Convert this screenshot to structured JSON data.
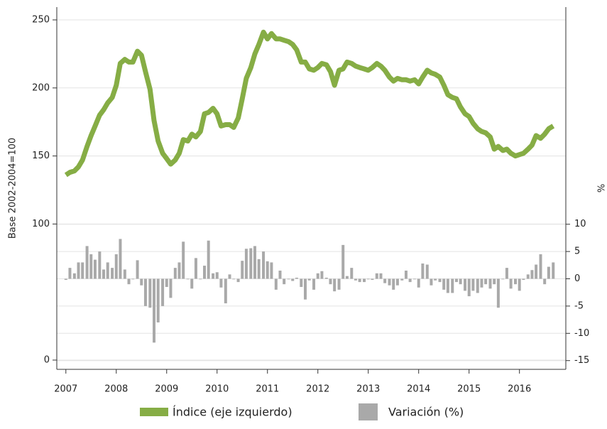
{
  "chart_data": {
    "type": "line",
    "y_label": "Base 2002-2004=100",
    "y2_label": "%",
    "x": [
      2007.0,
      2007.08,
      2007.17,
      2007.25,
      2007.33,
      2007.42,
      2007.5,
      2007.58,
      2007.67,
      2007.75,
      2007.83,
      2007.92,
      2008.0,
      2008.08,
      2008.17,
      2008.25,
      2008.33,
      2008.42,
      2008.5,
      2008.58,
      2008.67,
      2008.75,
      2008.83,
      2008.92,
      2009.0,
      2009.08,
      2009.17,
      2009.25,
      2009.33,
      2009.42,
      2009.5,
      2009.58,
      2009.67,
      2009.75,
      2009.83,
      2009.92,
      2010.0,
      2010.08,
      2010.17,
      2010.25,
      2010.33,
      2010.42,
      2010.5,
      2010.58,
      2010.67,
      2010.75,
      2010.83,
      2010.92,
      2011.0,
      2011.08,
      2011.17,
      2011.25,
      2011.33,
      2011.42,
      2011.5,
      2011.58,
      2011.67,
      2011.75,
      2011.83,
      2011.92,
      2012.0,
      2012.08,
      2012.17,
      2012.25,
      2012.33,
      2012.42,
      2012.5,
      2012.58,
      2012.67,
      2012.75,
      2012.83,
      2012.92,
      2013.0,
      2013.08,
      2013.17,
      2013.25,
      2013.33,
      2013.42,
      2013.5,
      2013.58,
      2013.67,
      2013.75,
      2013.83,
      2013.92,
      2014.0,
      2014.08,
      2014.17,
      2014.25,
      2014.33,
      2014.42,
      2014.5,
      2014.58,
      2014.67,
      2014.75,
      2014.83,
      2014.92,
      2015.0,
      2015.08,
      2015.17,
      2015.25,
      2015.33,
      2015.42,
      2015.5,
      2015.58,
      2015.67,
      2015.75,
      2015.83,
      2015.92,
      2016.0,
      2016.08,
      2016.17,
      2016.25,
      2016.33,
      2016.42,
      2016.5,
      2016.58,
      2016.67
    ],
    "series": [
      {
        "name": "Índice (eje izquierdo)",
        "type": "line",
        "axis": "y",
        "color": "#86ad45",
        "values": [
          136,
          138,
          139,
          142,
          147,
          157,
          165,
          172,
          180,
          184,
          189,
          193,
          202,
          218,
          221,
          219,
          219,
          227,
          224,
          212,
          199,
          176,
          161,
          152,
          148,
          144,
          147,
          152,
          162,
          161,
          166,
          164,
          168,
          181,
          182,
          185,
          181,
          172,
          173,
          173,
          171,
          178,
          192,
          207,
          215,
          225,
          232,
          241,
          236,
          240,
          236,
          236,
          235,
          234,
          232,
          228,
          219,
          219,
          214,
          213,
          215,
          218,
          217,
          212,
          202,
          213,
          214,
          219,
          218,
          216,
          215,
          214,
          213,
          215,
          218,
          216,
          213,
          208,
          205,
          207,
          206,
          206,
          205,
          206,
          203,
          208,
          213,
          211,
          210,
          208,
          202,
          195,
          193,
          192,
          186,
          181,
          179,
          174,
          170,
          168,
          167,
          164,
          155,
          157,
          154,
          155,
          152,
          150,
          151,
          152,
          155,
          158,
          165,
          163,
          166,
          170,
          172
        ]
      },
      {
        "name": "Variación (%)",
        "type": "bar",
        "axis": "y2",
        "color": "#a9a9a9",
        "values": [
          -0.2,
          2,
          1,
          3,
          3,
          6,
          4.5,
          3.5,
          5,
          1.7,
          3,
          2,
          4.5,
          7.3,
          1.7,
          -1,
          0,
          3.4,
          -1.2,
          -5,
          -5.3,
          -11.7,
          -8,
          -5,
          -1.5,
          -3.5,
          2,
          3,
          6.8,
          0,
          -1.8,
          3.8,
          0,
          2.4,
          7,
          1,
          1.2,
          -1.6,
          -4.5,
          0.8,
          0,
          -0.6,
          3.3,
          5.5,
          5.6,
          6,
          3.6,
          5,
          3.2,
          3,
          -2,
          1.5,
          -1,
          0,
          -0.4,
          0.2,
          -1.5,
          -3.8,
          -0.3,
          -2,
          1,
          1.4,
          0.2,
          -1,
          -2.3,
          -2,
          6.2,
          0.5,
          2,
          -0.3,
          -0.6,
          -0.6,
          0,
          -0.2,
          1,
          1,
          -0.8,
          -1.2,
          -2,
          -1.2,
          -0.3,
          1.5,
          -0.6,
          0,
          -1.6,
          2.8,
          2.6,
          -1.2,
          -0.3,
          -0.6,
          -2,
          -2.6,
          -2.6,
          -0.6,
          -1,
          -2.2,
          -3.2,
          -2.2,
          -2.6,
          -1.6,
          -1,
          -1.8,
          -1,
          -5.3,
          0,
          2,
          -1.8,
          -1,
          -2.2,
          -0.2,
          0.8,
          1.6,
          2.6,
          4.5,
          -1,
          2.2,
          3
        ]
      }
    ],
    "xlim": [
      2006.82,
      2016.92
    ],
    "xticks": [
      2007,
      2008,
      2009,
      2010,
      2011,
      2012,
      2013,
      2014,
      2015,
      2016
    ],
    "ylim": [
      -6.8,
      259.4
    ],
    "yticks": [
      0,
      100,
      150,
      200,
      250
    ],
    "y2lim": [
      -16.6,
      49.8
    ],
    "y2ticks": [
      -15,
      -10,
      -5,
      0,
      5,
      10
    ],
    "grid": true,
    "legend": "bottom"
  }
}
